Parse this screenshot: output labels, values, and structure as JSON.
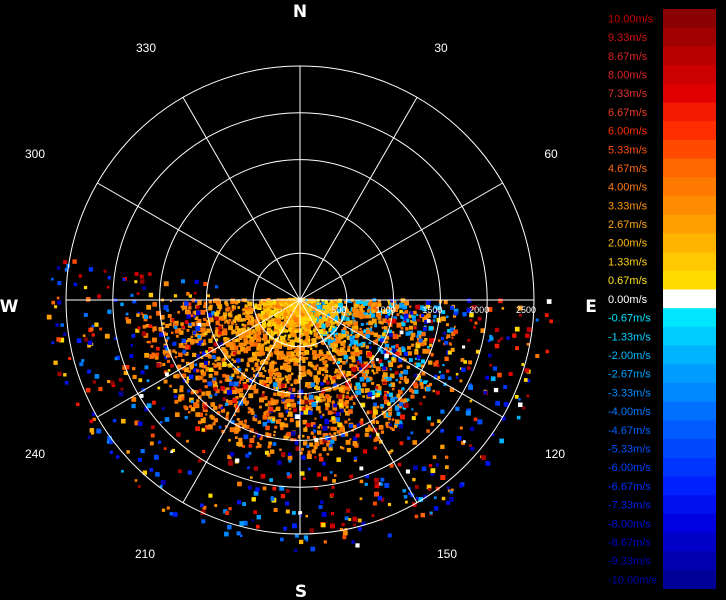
{
  "chart_data": {
    "type": "polar-scatter",
    "title": "",
    "compass_labels": {
      "north": "N",
      "east": "E",
      "south": "S",
      "west": "W"
    },
    "bearing_labels": [
      "30",
      "60",
      "120",
      "150",
      "210",
      "240",
      "300",
      "330"
    ],
    "range_labels": [
      "500",
      "1000",
      "1500",
      "2000",
      "2500"
    ],
    "range_max": 2500,
    "range_rings": [
      500,
      1000,
      1500,
      2000,
      2500
    ],
    "spoke_interval_deg": 30,
    "coverage_azimuth_deg": [
      90,
      270
    ],
    "velocity_unit": "m/s",
    "colorbar": {
      "labels": [
        "10.00m/s",
        "9.33m/s",
        "8.67m/s",
        "8.00m/s",
        "7.33m/s",
        "6.67m/s",
        "6.00m/s",
        "5.33m/s",
        "4.67m/s",
        "4.00m/s",
        "3.33m/s",
        "2.67m/s",
        "2.00m/s",
        "1.33m/s",
        "0.67m/s",
        "0.00m/s",
        "-0.67m/s",
        "-1.33m/s",
        "-2.00m/s",
        "-2.67m/s",
        "-3.33m/s",
        "-4.00m/s",
        "-4.67m/s",
        "-5.33m/s",
        "-6.00m/s",
        "-6.67m/s",
        "-7.33m/s",
        "-8.00m/s",
        "-8.67m/s",
        "-9.33m/s",
        "-10.00m/s"
      ],
      "values": [
        10,
        9.33,
        8.67,
        8,
        7.33,
        6.67,
        6,
        5.33,
        4.67,
        4,
        3.33,
        2.67,
        2,
        1.33,
        0.67,
        0,
        -0.67,
        -1.33,
        -2,
        -2.67,
        -3.33,
        -4,
        -4.67,
        -5.33,
        -6,
        -6.67,
        -7.33,
        -8,
        -8.67,
        -9.33,
        -10
      ],
      "colors": [
        "#8b0000",
        "#a00000",
        "#b80000",
        "#cc0000",
        "#e00000",
        "#f21a00",
        "#ff2e00",
        "#ff4a00",
        "#ff6600",
        "#ff7a00",
        "#ff8c00",
        "#ffa000",
        "#ffb400",
        "#ffc800",
        "#ffdc00",
        "#ffffff",
        "#00e6ff",
        "#00ccff",
        "#00b4ff",
        "#009cff",
        "#0088ff",
        "#0070ff",
        "#005cff",
        "#0048ff",
        "#0034ff",
        "#0020ff",
        "#0010f0",
        "#0000e0",
        "#0000c8",
        "#0000b0",
        "#000098"
      ],
      "label_colors": [
        "#c80000",
        "#d01010",
        "#d82020",
        "#e02020",
        "#e83030",
        "#f03a20",
        "#ff3000",
        "#ff5010",
        "#ff6a10",
        "#ff8010",
        "#ff9410",
        "#ffa810",
        "#ffbc10",
        "#ffd010",
        "#ffe020",
        "#ffffff",
        "#00e6ff",
        "#00d0ff",
        "#00b8ff",
        "#00a0ff",
        "#008cff",
        "#0078ff",
        "#0060ff",
        "#0050ff",
        "#0040ff",
        "#0030ff",
        "#0020ee",
        "#0010dd",
        "#0000cc",
        "#0000bb",
        "#0000aa"
      ]
    }
  }
}
